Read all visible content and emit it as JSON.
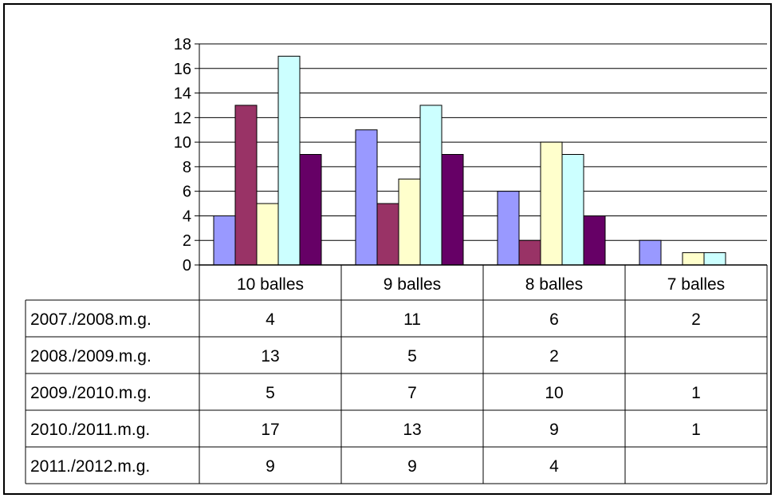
{
  "chart_data": {
    "type": "bar",
    "categories": [
      "10 balles",
      "9 balles",
      "8 balles",
      "7 balles"
    ],
    "series": [
      {
        "name": "2007./2008.m.g.",
        "values": [
          4,
          11,
          6,
          2
        ],
        "color": "#9999ff"
      },
      {
        "name": "2008./2009.m.g.",
        "values": [
          13,
          5,
          2,
          null
        ],
        "color": "#993366"
      },
      {
        "name": "2009./2010.m.g.",
        "values": [
          5,
          7,
          10,
          1
        ],
        "color": "#ffffcc"
      },
      {
        "name": "2010./2011.m.g.",
        "values": [
          17,
          13,
          9,
          1
        ],
        "color": "#ccffff"
      },
      {
        "name": "2011./2012.m.g.",
        "values": [
          9,
          9,
          4,
          null
        ],
        "color": "#660066"
      }
    ],
    "ylim": [
      0,
      18
    ],
    "yticks": [
      0,
      2,
      4,
      6,
      8,
      10,
      12,
      14,
      16,
      18
    ],
    "grid": true,
    "legend": "data-table-below"
  }
}
